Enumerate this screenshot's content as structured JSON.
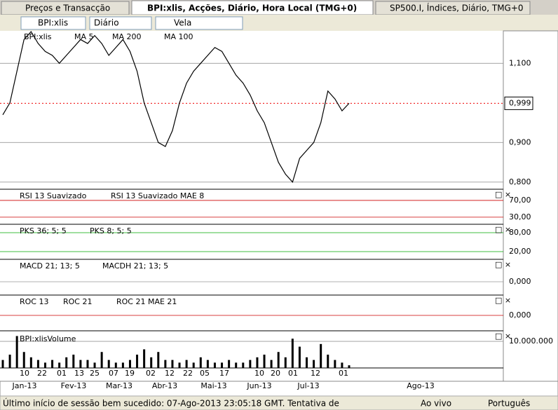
{
  "tabs": [
    "Preços e Transacção",
    "BPI:xlis, Acções, Diário, Hora Local (TMG+0)",
    "SP500.I, Índices, Diário, TMG+0"
  ],
  "toolbar": {
    "symbol": "BPI:xlis",
    "period": "Diário",
    "style": "Vela"
  },
  "price": {
    "labels": [
      "BPI:xlis",
      "MA 5",
      "MA 200",
      "MA 100"
    ],
    "ylim": [
      0.782,
      1.182
    ],
    "yticks": [
      {
        "value": 1.1,
        "label": "1,100"
      },
      {
        "value": 0.9,
        "label": "0,900"
      },
      {
        "value": 0.8,
        "label": "0,800"
      }
    ],
    "current": {
      "value": 0.999,
      "label": "0,999"
    },
    "closes": [
      0.97,
      1.0,
      1.08,
      1.16,
      1.18,
      1.15,
      1.13,
      1.12,
      1.1,
      1.12,
      1.14,
      1.16,
      1.15,
      1.17,
      1.15,
      1.12,
      1.14,
      1.16,
      1.13,
      1.08,
      1.0,
      0.95,
      0.9,
      0.89,
      0.93,
      1.0,
      1.05,
      1.08,
      1.1,
      1.12,
      1.14,
      1.13,
      1.1,
      1.07,
      1.05,
      1.02,
      0.98,
      0.95,
      0.9,
      0.85,
      0.82,
      0.8,
      0.86,
      0.88,
      0.9,
      0.95,
      1.03,
      1.01,
      0.98,
      0.999
    ]
  },
  "rsi": {
    "labels": [
      "RSI 13 Suavizado",
      "RSI 13 Suavizado MAE 8"
    ],
    "ylim": [
      13,
      95
    ],
    "yticks": [
      {
        "value": 70,
        "label": "70,00"
      },
      {
        "value": 30,
        "label": "30,00"
      }
    ]
  },
  "stoch": {
    "labels": [
      "PKS 36; 5; 5",
      "PKS 8; 5; 5"
    ],
    "ylim": [
      -4.4,
      104.4
    ],
    "yticks": [
      {
        "value": 80,
        "label": "80,00"
      },
      {
        "value": 20,
        "label": "20,00"
      }
    ]
  },
  "macd": {
    "labels": [
      "MACD 21; 13; 5",
      "MACDH 21; 13; 5"
    ],
    "ylim": [
      -0.038,
      0.062
    ],
    "yticks": [
      {
        "value": 0,
        "label": "0,000"
      }
    ]
  },
  "roc": {
    "labels": [
      "ROC 13",
      "ROC 21",
      "ROC 21 MAE 21"
    ],
    "ylim": [
      -22,
      28
    ],
    "yticks": [
      {
        "value": 0,
        "label": "0,000"
      }
    ]
  },
  "volume": {
    "label": "BPI:xlisVolume",
    "ylim": [
      0,
      13700000
    ],
    "yticks": [
      {
        "value": 10000000,
        "label": "10.000.000"
      }
    ],
    "values": [
      3000000,
      5000000,
      12000000,
      6000000,
      4000000,
      3000000,
      2000000,
      3000000,
      2000000,
      4000000,
      5000000,
      3000000,
      3000000,
      2000000,
      6000000,
      3000000,
      2000000,
      2000000,
      3000000,
      5000000,
      7000000,
      4000000,
      6000000,
      3000000,
      3000000,
      2000000,
      3000000,
      2000000,
      4000000,
      3000000,
      2000000,
      2000000,
      3000000,
      2000000,
      2000000,
      3000000,
      4000000,
      5000000,
      3000000,
      6000000,
      4000000,
      11000000,
      8000000,
      4000000,
      3000000,
      9000000,
      5000000,
      3000000,
      2000000,
      1000000
    ]
  },
  "days": [
    "10",
    "22",
    "01",
    "13",
    "25",
    "07",
    "19",
    "02",
    "12",
    "22",
    "05",
    "17",
    "10",
    "20",
    "01",
    "12",
    "01"
  ],
  "months": [
    "Jan-13",
    "Fev-13",
    "Mar-13",
    "Abr-13",
    "Mai-13",
    "Jun-13",
    "Jul-13",
    "Ago-13"
  ],
  "status": {
    "message": "Último início de sessão bem sucedido: 07-Ago-2013 23:05:18 GMT. Tentativa de",
    "live": "Ao vivo",
    "language": "Português"
  }
}
